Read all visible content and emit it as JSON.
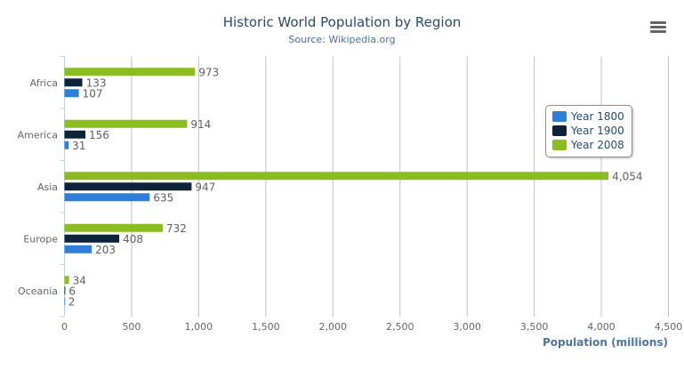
{
  "chart_data": {
    "type": "bar",
    "orientation": "horizontal",
    "title": "Historic World Population by Region",
    "subtitle": "Source: Wikipedia.org",
    "categories": [
      "Africa",
      "America",
      "Asia",
      "Europe",
      "Oceania"
    ],
    "series": [
      {
        "name": "Year 1800",
        "color": "#2f7ed8",
        "values": [
          107,
          31,
          635,
          203,
          2
        ]
      },
      {
        "name": "Year 1900",
        "color": "#0d233a",
        "values": [
          133,
          156,
          947,
          408,
          6
        ]
      },
      {
        "name": "Year 2008",
        "color": "#8bbc21",
        "values": [
          973,
          914,
          4054,
          732,
          34
        ]
      }
    ],
    "xlabel": "",
    "ylabel": "Population (millions)",
    "value_axis_range": [
      0,
      4500
    ],
    "value_ticks": [
      "0",
      "500",
      "1,000",
      "1,500",
      "2,000",
      "2,500",
      "3,000",
      "3,500",
      "4,000",
      "4,500"
    ],
    "data_labels": true,
    "grid": true,
    "legend_placement": "right"
  },
  "menu_icon": "hamburger-menu-icon"
}
